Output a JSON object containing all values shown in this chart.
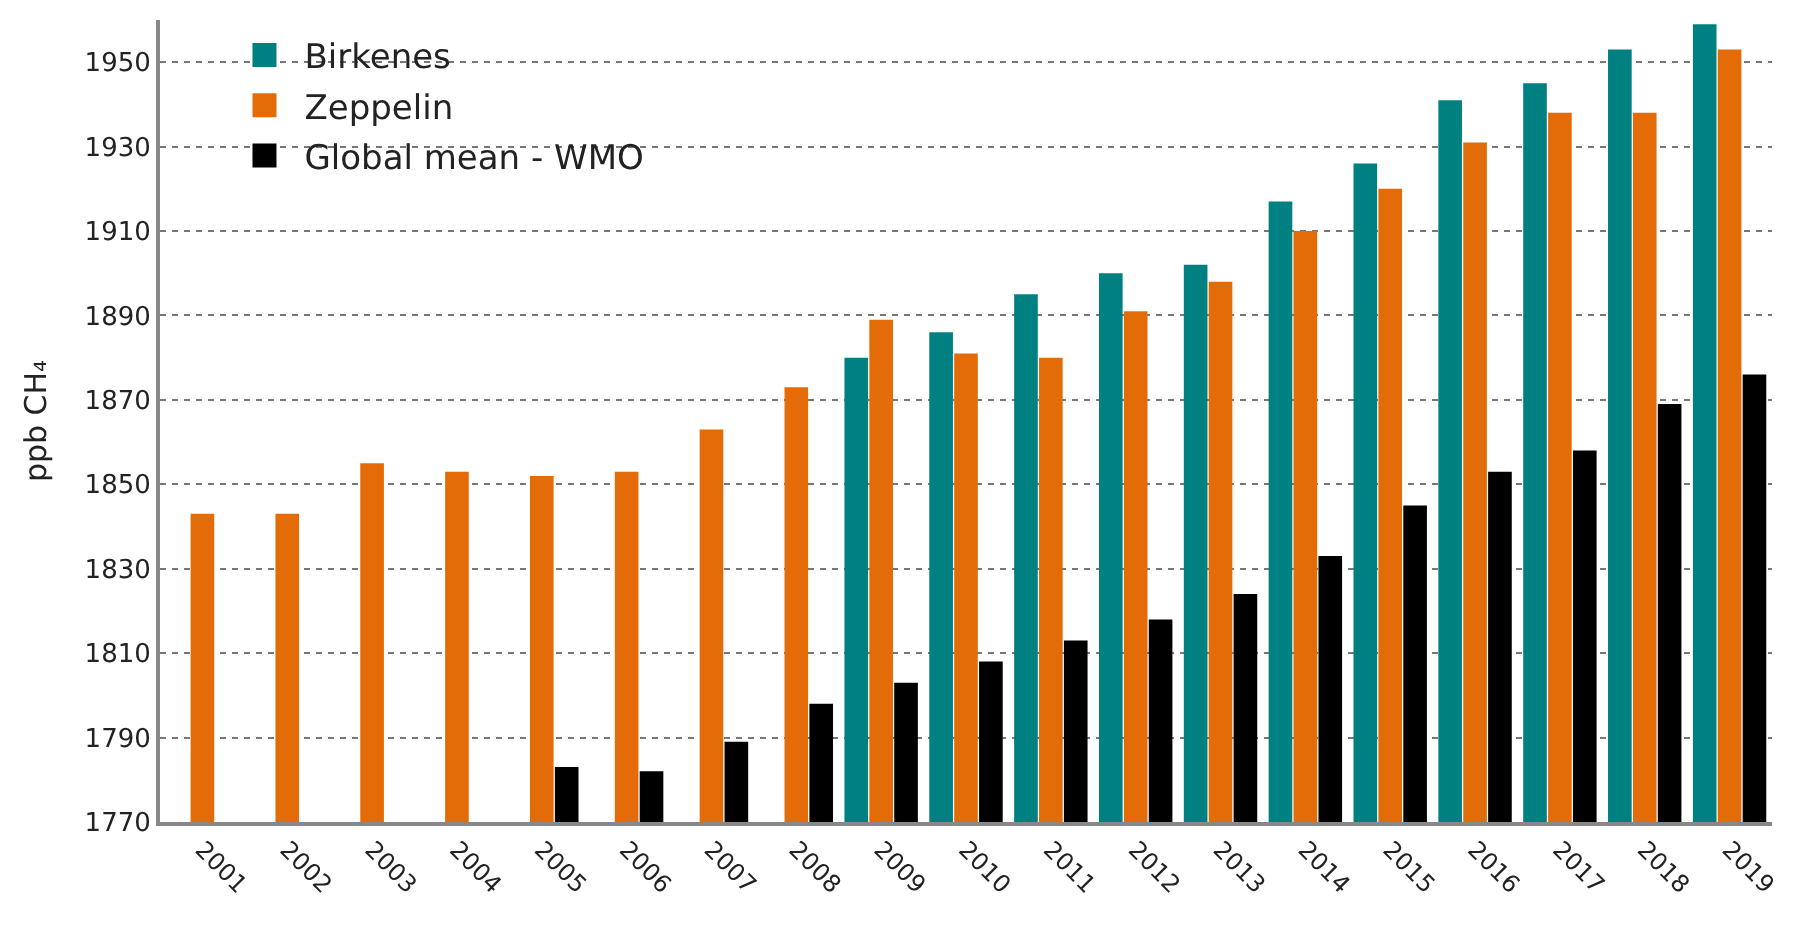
{
  "chart_data": {
    "type": "bar",
    "ylabel": "ppb CH₄",
    "categories": [
      "2001",
      "2002",
      "2003",
      "2004",
      "2005",
      "2006",
      "2007",
      "2008",
      "2009",
      "2010",
      "2011",
      "2012",
      "2013",
      "2014",
      "2015",
      "2016",
      "2017",
      "2018",
      "2019"
    ],
    "series": [
      {
        "name": "Birkenes",
        "color": "#008080",
        "values": [
          null,
          null,
          null,
          null,
          null,
          null,
          null,
          null,
          1880,
          1886,
          1895,
          1900,
          1902,
          1917,
          1926,
          1941,
          1945,
          1953,
          1959
        ]
      },
      {
        "name": "Zeppelin",
        "color": "#e36c09",
        "values": [
          1843,
          1843,
          1855,
          1853,
          1852,
          1853,
          1863,
          1873,
          1889,
          1881,
          1880,
          1891,
          1898,
          1910,
          1920,
          1931,
          1938,
          1938,
          1953
        ]
      },
      {
        "name": "Global mean - WMO",
        "color": "#000000",
        "values": [
          null,
          null,
          null,
          null,
          1783,
          1782,
          1789,
          1798,
          1803,
          1808,
          1813,
          1818,
          1824,
          1833,
          1845,
          1853,
          1858,
          1869,
          1876
        ]
      }
    ],
    "ylim": [
      1770,
      1960
    ],
    "yticks": [
      1770,
      1790,
      1810,
      1830,
      1850,
      1870,
      1890,
      1910,
      1930,
      1950
    ],
    "grid": "y",
    "legend": "top left"
  }
}
